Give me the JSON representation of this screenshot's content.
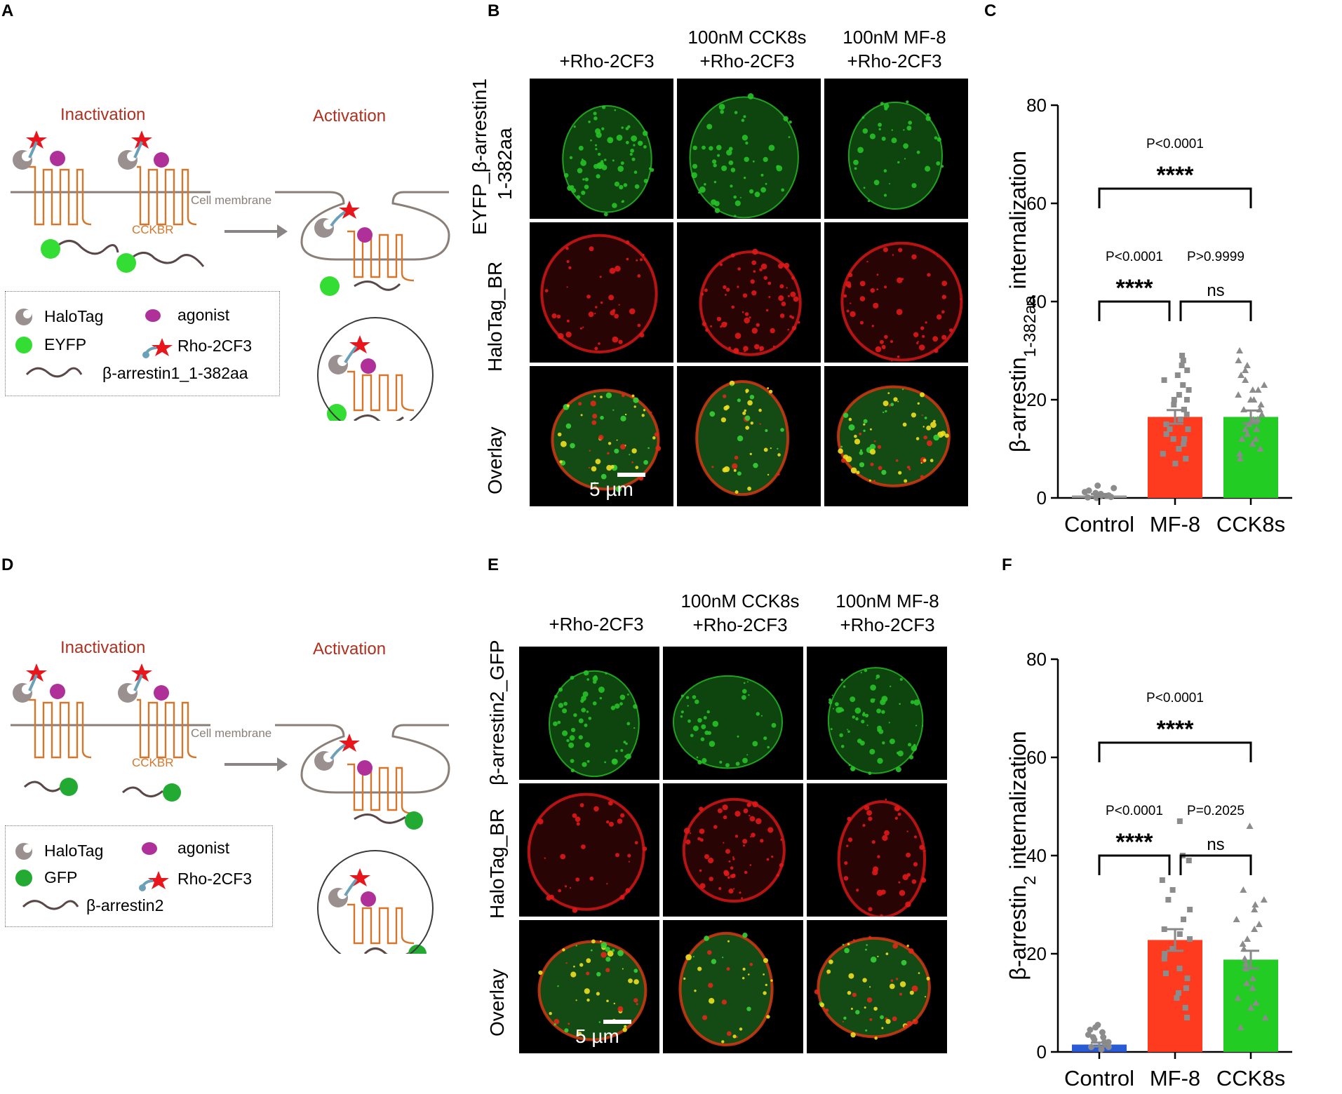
{
  "panels": {
    "A": "A",
    "B": "B",
    "C": "C",
    "D": "D",
    "E": "E",
    "F": "F"
  },
  "schematic_top": {
    "inactivation": "Inactivation",
    "activation": "Activation",
    "membrane": "Cell membrane",
    "receptor": "CCKBR",
    "legend": {
      "halotag": "HaloTag",
      "agonist": "agonist",
      "reporter": "EYFP",
      "dye": "Rho-2CF3",
      "arrestin": "β-arrestin1_1-382aa"
    }
  },
  "schematic_bottom": {
    "inactivation": "Inactivation",
    "activation": "Activation",
    "membrane": "Cell membrane",
    "receptor": "CCKBR",
    "legend": {
      "halotag": "HaloTag",
      "agonist": "agonist",
      "reporter": "GFP",
      "dye": "Rho-2CF3",
      "arrestin": "β-arrestin2"
    }
  },
  "micro_top": {
    "col1": "+Rho-2CF3",
    "col2a": "100nM CCK8s",
    "col2b": "+Rho-2CF3",
    "col3a": "100nM MF-8",
    "col3b": "+Rho-2CF3",
    "row1a": "EYFP_β-arrestin1",
    "row1b": "1-382aa",
    "row2": "HaloTag_BR",
    "row3": "Overlay",
    "scale": "5 µm"
  },
  "micro_bottom": {
    "col1": "+Rho-2CF3",
    "col2a": "100nM CCK8s",
    "col2b": "+Rho-2CF3",
    "col3a": "100nM MF-8",
    "col3b": "+Rho-2CF3",
    "row1": "β-arrestin2_GFP",
    "row2": "HaloTag_BR",
    "row3": "Overlay",
    "scale": "5 µm"
  },
  "colors": {
    "control_top": "#9a9a9a",
    "control_bottom": "#2a5bd7",
    "mf8": "#ff3b1f",
    "cck8s": "#22cc22",
    "points": "#8c8c8c"
  },
  "chart_data": [
    {
      "type": "bar",
      "categories": [
        "Control",
        "MF-8",
        "CCK8s"
      ],
      "values": [
        0.5,
        16.5,
        16.5
      ],
      "errors": [
        0.3,
        1.4,
        1.3
      ],
      "ylim": [
        0,
        80
      ],
      "yticks": [
        "0",
        "20",
        "40",
        "60",
        "80"
      ],
      "ylabel": "β-arrestin",
      "ylabel_sub": "1-382aa",
      "ylabel_tail": " internalization",
      "comparisons": [
        {
          "from": "Control",
          "to": "CCK8s",
          "p": "P<0.0001",
          "stars": "****"
        },
        {
          "from": "Control",
          "to": "MF-8",
          "p": "P<0.0001",
          "stars": "****"
        },
        {
          "from": "MF-8",
          "to": "CCK8s",
          "p": "P>0.9999",
          "stars": "ns"
        }
      ],
      "points": {
        "Control": [
          0,
          0.2,
          0.3,
          0.5,
          0.8,
          1,
          1.2,
          1.5,
          2,
          2.5,
          0.1,
          0.4
        ],
        "MF-8": [
          7,
          8,
          9,
          10,
          11,
          12,
          13,
          14,
          15,
          16,
          17,
          18,
          19,
          20,
          21,
          22,
          23,
          24,
          25,
          26,
          27,
          28,
          29,
          12,
          14,
          16,
          18,
          20
        ],
        "CCK8s": [
          8,
          9,
          10,
          11,
          12,
          13,
          14,
          15,
          16,
          17,
          18,
          19,
          20,
          21,
          22,
          23,
          24,
          25,
          26,
          27,
          28,
          30,
          14,
          16,
          18,
          12,
          20,
          22
        ]
      }
    },
    {
      "type": "bar",
      "categories": [
        "Control",
        "MF-8",
        "CCK8s"
      ],
      "values": [
        1.5,
        22.8,
        18.8
      ],
      "errors": [
        0.4,
        2.2,
        1.8
      ],
      "ylim": [
        0,
        80
      ],
      "yticks": [
        "0",
        "20",
        "40",
        "60",
        "80"
      ],
      "ylabel": "β-arrestin",
      "ylabel_sub": "2",
      "ylabel_tail": " internalization",
      "comparisons": [
        {
          "from": "Control",
          "to": "CCK8s",
          "p": "P<0.0001",
          "stars": "****"
        },
        {
          "from": "Control",
          "to": "MF-8",
          "p": "P<0.0001",
          "stars": "****"
        },
        {
          "from": "MF-8",
          "to": "CCK8s",
          "p": "P=0.2025",
          "stars": "ns"
        }
      ],
      "points": {
        "Control": [
          0.5,
          1,
          1.5,
          2,
          2.5,
          3,
          3.5,
          4,
          4.5,
          5,
          5.5,
          1,
          2,
          3
        ],
        "MF-8": [
          7,
          9,
          11,
          13,
          15,
          17,
          19,
          21,
          23,
          25,
          27,
          29,
          31,
          33,
          35,
          39,
          40,
          47,
          12,
          16,
          20,
          24
        ],
        "CCK8s": [
          5,
          7,
          9,
          11,
          13,
          15,
          17,
          19,
          21,
          23,
          25,
          27,
          29,
          31,
          33,
          46,
          10,
          14,
          18,
          22,
          26,
          30
        ]
      }
    }
  ]
}
